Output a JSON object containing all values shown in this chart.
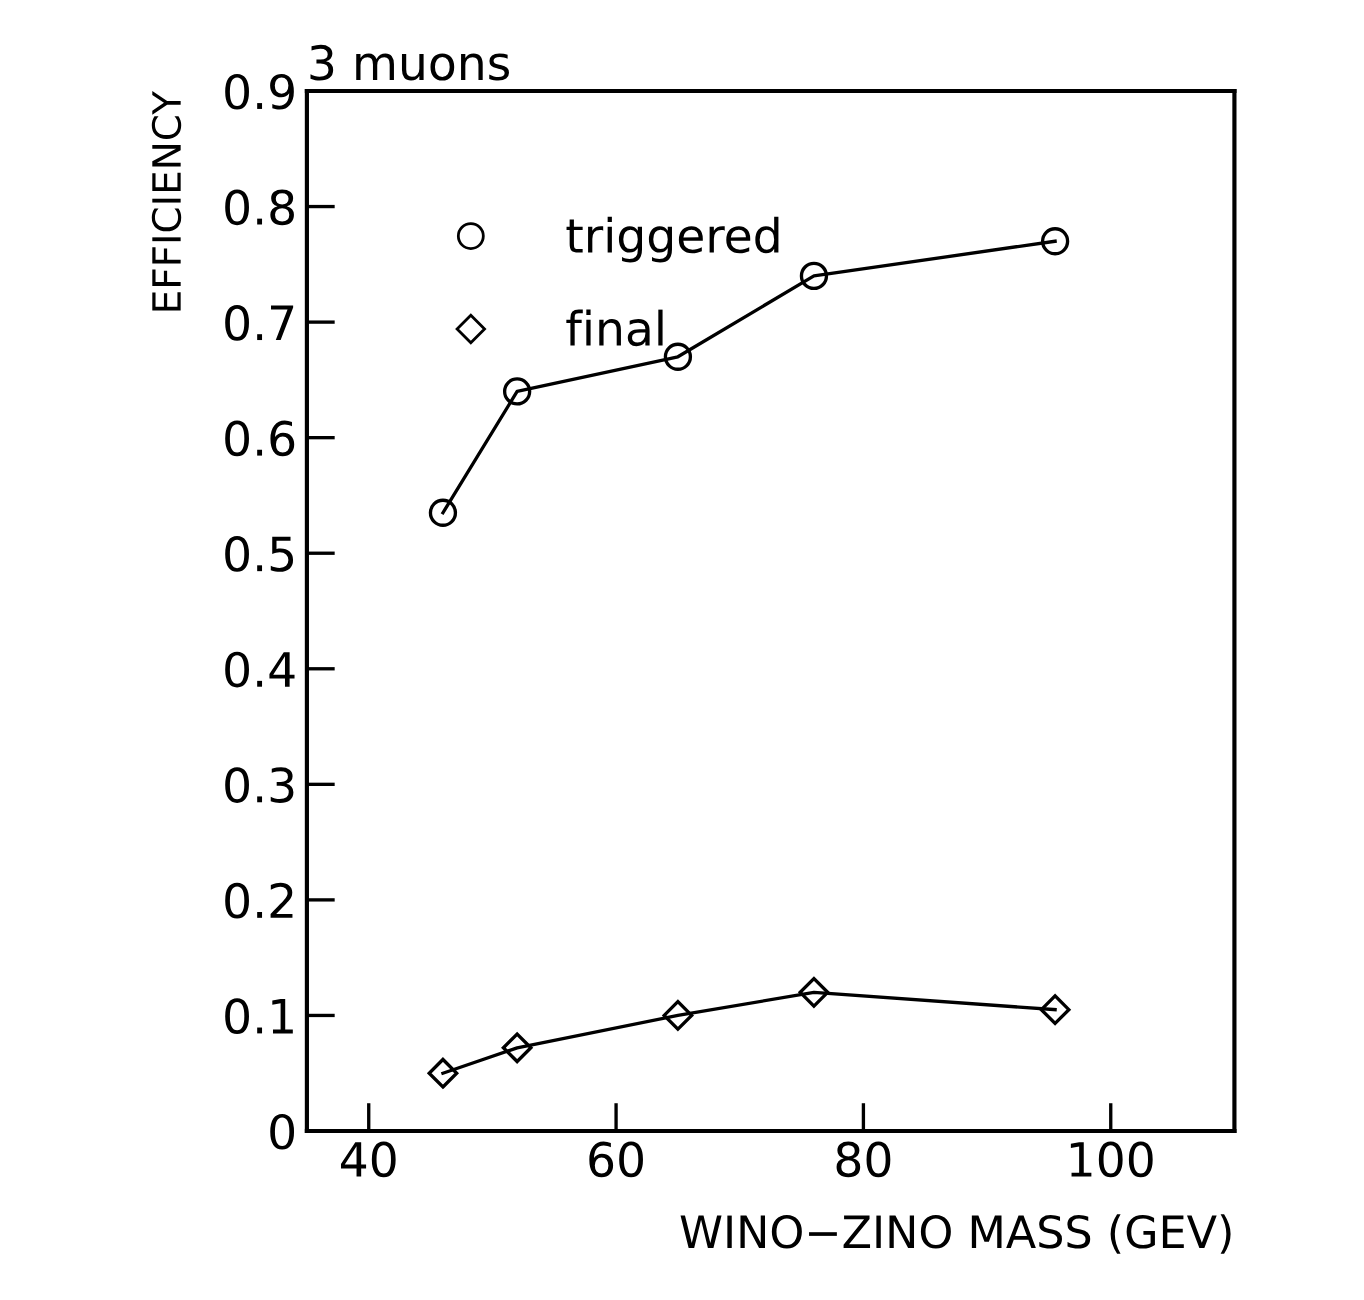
{
  "chart_data": {
    "type": "line",
    "title": "3 muons",
    "xlabel": "WINO−ZINO MASS (GEV)",
    "ylabel": "EFFICIENCY",
    "x": [
      46,
      52,
      65,
      76,
      95.5
    ],
    "series": [
      {
        "name": "triggered",
        "color": "#000000",
        "marker": "circle",
        "values": [
          0.535,
          0.64,
          0.67,
          0.74,
          0.77
        ]
      },
      {
        "name": "final",
        "color": "#000000",
        "marker": "diamond",
        "values": [
          0.05,
          0.072,
          0.1,
          0.12,
          0.105
        ]
      }
    ],
    "xlim": [
      35,
      110
    ],
    "xticks": [
      40,
      60,
      80,
      100
    ],
    "ylim": [
      0,
      0.9
    ],
    "yticks": [
      0,
      0.1,
      0.2,
      0.3,
      0.4,
      0.5,
      0.6,
      0.7,
      0.8,
      0.9
    ],
    "grid": false,
    "legend": "top left",
    "line_style": "solid"
  }
}
